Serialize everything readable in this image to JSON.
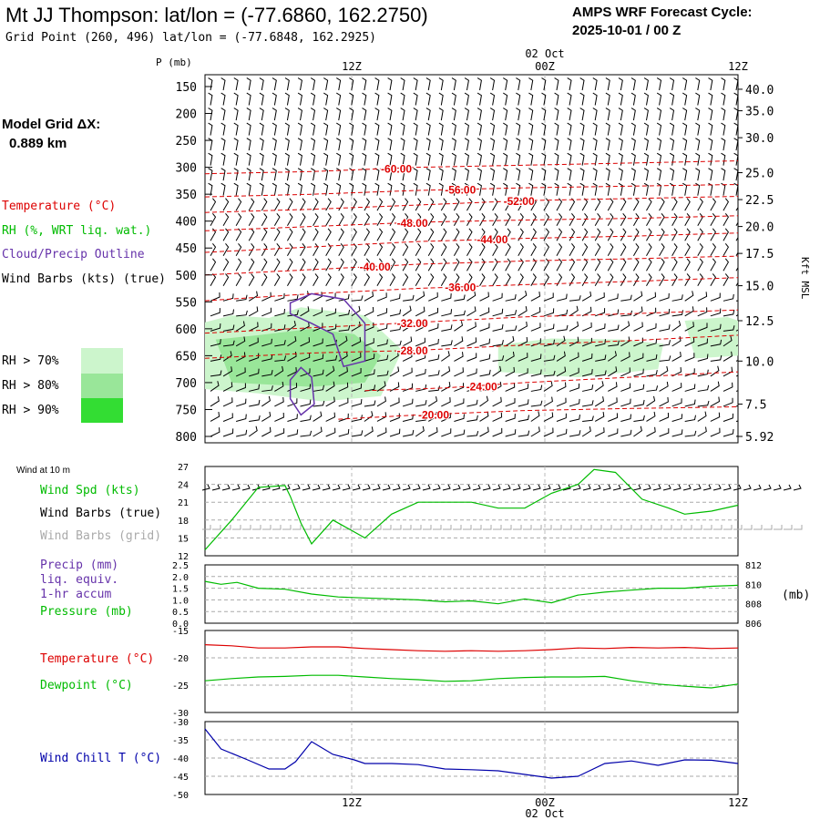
{
  "header": {
    "title": "Mt JJ Thompson:  lat/lon = (-77.6860, 162.2750)",
    "grid_point": "Grid Point (260, 496) lat/lon = (-77.6848, 162.2925)",
    "cycle_line1": "AMPS WRF Forecast Cycle:",
    "cycle_line2": "2025-10-01 / 00  Z"
  },
  "legend": {
    "model_grid_label": "Model Grid ΔX:",
    "model_grid_value": "0.889 km",
    "temperature": "Temperature (°C)",
    "rh": "RH (%, WRT liq. wat.)",
    "cloud": "Cloud/Precip Outline",
    "wind": "Wind Barbs (kts) (true)",
    "rh70": "RH > 70%",
    "rh80": "RH > 80%",
    "rh90": "RH > 90%",
    "wind_at": "Wind at 10 m",
    "wind_spd": "Wind Spd (kts)",
    "wind_barbs_true": "Wind Barbs (true)",
    "wind_barbs_grid": "Wind Barbs (grid)",
    "precip": "Precip (mm)",
    "liq": "liq. equiv.",
    "accum": "1-hr accum",
    "pressure": "Pressure (mb)",
    "pressure_unit": "(mb)",
    "temp2": "Temperature (°C)",
    "dewpoint": "Dewpoint (°C)",
    "windchill": "Wind Chill T (°C)"
  },
  "colors": {
    "temperature": "#dd0000",
    "rh": "#00bb00",
    "cloud": "#6633aa",
    "wind": "#000000",
    "grid_barbs": "#aaaaaa",
    "windchill": "#0000aa",
    "rh70": "#ccf5cc",
    "rh80": "#99e699",
    "rh90": "#33dd33"
  },
  "time_axis": {
    "top_date": "02 Oct",
    "bottom_date": "02 Oct",
    "ticks": [
      "12Z",
      "00Z",
      "12Z"
    ]
  },
  "chart_data": [
    {
      "type": "line",
      "name": "sounding",
      "ylabel": "P (mb)",
      "right_label": "Kft MSL",
      "pressure_ticks": [
        150,
        200,
        250,
        300,
        350,
        400,
        450,
        500,
        550,
        600,
        650,
        700,
        750,
        800
      ],
      "height_ticks": [
        {
          "p": 155,
          "v": "40.0"
        },
        {
          "p": 195,
          "v": "35.0"
        },
        {
          "p": 245,
          "v": "30.0"
        },
        {
          "p": 310,
          "v": "25.0"
        },
        {
          "p": 360,
          "v": "22.5"
        },
        {
          "p": 410,
          "v": "20.0"
        },
        {
          "p": 460,
          "v": "17.5"
        },
        {
          "p": 520,
          "v": "15.0"
        },
        {
          "p": 585,
          "v": "12.5"
        },
        {
          "p": 660,
          "v": "10.0"
        },
        {
          "p": 740,
          "v": "7.5"
        },
        {
          "p": 800,
          "v": "5.92"
        }
      ],
      "isotherms": [
        {
          "label": "-60.00",
          "x": 0.33,
          "points": [
            [
              0,
              312
            ],
            [
              0.2,
              308
            ],
            [
              0.4,
              300
            ],
            [
              0.6,
              296
            ],
            [
              0.8,
              292
            ],
            [
              1,
              288
            ]
          ]
        },
        {
          "label": "-56.00",
          "x": 0.45,
          "points": [
            [
              0,
              355
            ],
            [
              0.2,
              350
            ],
            [
              0.4,
              343
            ],
            [
              0.6,
              338
            ],
            [
              0.8,
              335
            ],
            [
              1,
              332
            ]
          ]
        },
        {
          "label": "-52.00",
          "x": 0.56,
          "points": [
            [
              0,
              384
            ],
            [
              0.2,
              378
            ],
            [
              0.4,
              370
            ],
            [
              0.6,
              362
            ],
            [
              0.8,
              358
            ],
            [
              1,
              354
            ]
          ]
        },
        {
          "label": "-48.00",
          "x": 0.36,
          "points": [
            [
              0,
              418
            ],
            [
              0.2,
              410
            ],
            [
              0.4,
              402
            ],
            [
              0.6,
              398
            ],
            [
              0.8,
              395
            ],
            [
              1,
              390
            ]
          ]
        },
        {
          "label": "-44.00",
          "x": 0.51,
          "points": [
            [
              0,
              458
            ],
            [
              0.2,
              448
            ],
            [
              0.4,
              438
            ],
            [
              0.6,
              432
            ],
            [
              0.8,
              428
            ],
            [
              1,
              422
            ]
          ]
        },
        {
          "label": "-40.00",
          "x": 0.29,
          "points": [
            [
              0,
              500
            ],
            [
              0.2,
              490
            ],
            [
              0.4,
              480
            ],
            [
              0.6,
              474
            ],
            [
              0.8,
              470
            ],
            [
              1,
              465
            ]
          ]
        },
        {
          "label": "-36.00",
          "x": 0.45,
          "points": [
            [
              0,
              548
            ],
            [
              0.2,
              535
            ],
            [
              0.4,
              525
            ],
            [
              0.6,
              518
            ],
            [
              0.8,
              512
            ],
            [
              1,
              505
            ]
          ]
        },
        {
          "label": "-32.00",
          "x": 0.36,
          "points": [
            [
              0,
              608
            ],
            [
              0.2,
              598
            ],
            [
              0.4,
              588
            ],
            [
              0.6,
              578
            ],
            [
              0.8,
              572
            ],
            [
              1,
              565
            ]
          ]
        },
        {
          "label": "-28.00",
          "x": 0.36,
          "points": [
            [
              0,
              655
            ],
            [
              0.2,
              645
            ],
            [
              0.4,
              640
            ],
            [
              0.6,
              630
            ],
            [
              0.8,
              622
            ],
            [
              1,
              612
            ]
          ]
        },
        {
          "label": "-24.00",
          "x": 0.49,
          "points": [
            [
              0.3,
              715
            ],
            [
              0.45,
              710
            ],
            [
              0.6,
              700
            ],
            [
              0.8,
              690
            ],
            [
              1,
              680
            ]
          ]
        },
        {
          "label": "-20.00",
          "x": 0.4,
          "points": [
            [
              0.25,
              768
            ],
            [
              0.4,
              760
            ],
            [
              0.6,
              752
            ],
            [
              0.8,
              748
            ],
            [
              1,
              745
            ]
          ]
        }
      ],
      "rh_regions": [
        {
          "level": "rh70",
          "points": [
            [
              0,
              588
            ],
            [
              0.05,
              575
            ],
            [
              0.12,
              580
            ],
            [
              0.18,
              560
            ],
            [
              0.3,
              575
            ],
            [
              0.37,
              640
            ],
            [
              0.33,
              725
            ],
            [
              0.22,
              735
            ],
            [
              0.1,
              720
            ],
            [
              0,
              712
            ]
          ]
        },
        {
          "level": "rh80",
          "points": [
            [
              0.02,
              620
            ],
            [
              0.1,
              612
            ],
            [
              0.2,
              600
            ],
            [
              0.28,
              610
            ],
            [
              0.33,
              650
            ],
            [
              0.3,
              700
            ],
            [
              0.2,
              708
            ],
            [
              0.05,
              700
            ]
          ]
        },
        {
          "level": "rh70",
          "points": [
            [
              0.55,
              630
            ],
            [
              0.65,
              618
            ],
            [
              0.78,
              620
            ],
            [
              0.86,
              628
            ],
            [
              0.85,
              675
            ],
            [
              0.7,
              690
            ],
            [
              0.55,
              680
            ]
          ]
        },
        {
          "level": "rh70",
          "points": [
            [
              0.9,
              585
            ],
            [
              0.98,
              578
            ],
            [
              1,
              585
            ],
            [
              1,
              650
            ],
            [
              0.92,
              655
            ]
          ]
        }
      ],
      "cloud_outlines": [
        [
          [
            0.16,
            552
          ],
          [
            0.2,
            535
          ],
          [
            0.26,
            545
          ],
          [
            0.3,
            590
          ],
          [
            0.3,
            660
          ],
          [
            0.26,
            670
          ],
          [
            0.24,
            610
          ],
          [
            0.2,
            590
          ],
          [
            0.16,
            572
          ]
        ],
        [
          [
            0.16,
            695
          ],
          [
            0.18,
            672
          ],
          [
            0.2,
            690
          ],
          [
            0.205,
            740
          ],
          [
            0.18,
            760
          ],
          [
            0.16,
            730
          ]
        ]
      ]
    },
    {
      "type": "line",
      "name": "wind_speed",
      "ylim": [
        12,
        27
      ],
      "yticks": [
        12,
        15,
        18,
        21,
        24,
        27
      ],
      "x": [
        0,
        0.05,
        0.1,
        0.15,
        0.16,
        0.18,
        0.2,
        0.24,
        0.26,
        0.3,
        0.35,
        0.4,
        0.45,
        0.5,
        0.55,
        0.6,
        0.65,
        0.7,
        0.73,
        0.77,
        0.82,
        0.87,
        0.9,
        0.95,
        1
      ],
      "series": [
        {
          "name": "Wind Spd (kts)",
          "values": [
            13,
            18,
            23.5,
            23.8,
            22,
            17.5,
            14,
            18,
            17,
            15,
            19,
            21,
            21,
            21,
            20,
            20,
            22.5,
            24,
            26.5,
            26,
            21.5,
            20,
            19,
            19.5,
            20.5
          ]
        }
      ]
    },
    {
      "type": "line",
      "name": "precip_pressure",
      "ylim": [
        0,
        2.5
      ],
      "yticks": [
        0,
        0.5,
        1.0,
        1.5,
        2.0,
        2.5
      ],
      "y2ticks": [
        806,
        808,
        810,
        812
      ],
      "y2lim": [
        806,
        812
      ],
      "x": [
        0,
        0.03,
        0.06,
        0.1,
        0.15,
        0.2,
        0.25,
        0.3,
        0.35,
        0.4,
        0.45,
        0.5,
        0.55,
        0.6,
        0.65,
        0.7,
        0.75,
        0.8,
        0.85,
        0.9,
        0.95,
        1
      ],
      "series": [
        {
          "name": "Pressure (mb)",
          "axis": "y2",
          "values": [
            810.3,
            810.0,
            810.2,
            809.6,
            809.5,
            809.0,
            808.7,
            808.6,
            808.5,
            808.4,
            808.2,
            808.3,
            808.0,
            808.5,
            808.1,
            808.9,
            809.2,
            809.4,
            809.6,
            809.6,
            809.8,
            809.9
          ]
        }
      ]
    },
    {
      "type": "line",
      "name": "temperature_dewpoint",
      "ylim": [
        -30,
        -15
      ],
      "yticks": [
        -30,
        -25,
        -20,
        -15
      ],
      "x": [
        0,
        0.05,
        0.1,
        0.15,
        0.2,
        0.25,
        0.3,
        0.35,
        0.4,
        0.45,
        0.5,
        0.55,
        0.6,
        0.65,
        0.7,
        0.75,
        0.8,
        0.85,
        0.9,
        0.95,
        1
      ],
      "series": [
        {
          "name": "Temperature (°C)",
          "values": [
            -17.6,
            -17.8,
            -18.2,
            -18.2,
            -18.0,
            -18.0,
            -18.3,
            -18.5,
            -18.7,
            -18.8,
            -18.7,
            -18.8,
            -18.7,
            -18.5,
            -18.2,
            -18.3,
            -18.1,
            -18.2,
            -18.1,
            -18.3,
            -18.2
          ]
        },
        {
          "name": "Dewpoint (°C)",
          "values": [
            -24.2,
            -23.8,
            -23.5,
            -23.4,
            -23.2,
            -23.2,
            -23.5,
            -23.8,
            -24.0,
            -24.3,
            -24.2,
            -23.8,
            -23.6,
            -23.5,
            -23.5,
            -23.4,
            -24.2,
            -24.8,
            -25.2,
            -25.5,
            -24.8
          ]
        }
      ]
    },
    {
      "type": "line",
      "name": "wind_chill",
      "ylim": [
        -50,
        -30
      ],
      "yticks": [
        -50,
        -45,
        -40,
        -35,
        -30
      ],
      "x": [
        0,
        0.03,
        0.08,
        0.12,
        0.15,
        0.17,
        0.2,
        0.24,
        0.28,
        0.3,
        0.35,
        0.4,
        0.45,
        0.5,
        0.55,
        0.6,
        0.65,
        0.7,
        0.75,
        0.8,
        0.85,
        0.9,
        0.95,
        1
      ],
      "series": [
        {
          "name": "Wind Chill T (°C)",
          "values": [
            -32,
            -37.5,
            -40.5,
            -43,
            -43,
            -41,
            -35.5,
            -39,
            -40.5,
            -41.5,
            -41.5,
            -41.8,
            -43,
            -43.2,
            -43.5,
            -44.5,
            -45.5,
            -45,
            -41.5,
            -40.8,
            -42,
            -40.5,
            -40.6,
            -41.5
          ]
        }
      ]
    }
  ]
}
